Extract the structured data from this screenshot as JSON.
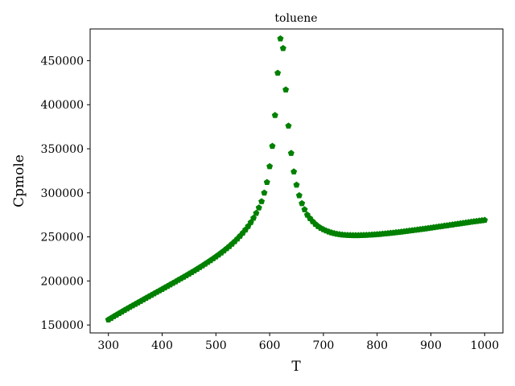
{
  "chart_data": {
    "type": "scatter",
    "title": "toluene",
    "xlabel": "T",
    "ylabel": "Cpmole",
    "xlim": [
      266,
      1034
    ],
    "ylim": [
      141000,
      486000
    ],
    "xticks": [
      300,
      400,
      500,
      600,
      700,
      800,
      900,
      1000
    ],
    "yticks": [
      150000,
      200000,
      250000,
      300000,
      350000,
      400000,
      450000
    ],
    "marker": "pentagon",
    "marker_color": "#008000",
    "grid": false,
    "series": [
      {
        "points": [
          [
            300,
            156000
          ],
          [
            305,
            157800
          ],
          [
            310,
            159700
          ],
          [
            315,
            161500
          ],
          [
            320,
            163300
          ],
          [
            325,
            165000
          ],
          [
            330,
            166800
          ],
          [
            335,
            168500
          ],
          [
            340,
            170300
          ],
          [
            345,
            172000
          ],
          [
            350,
            173700
          ],
          [
            355,
            175400
          ],
          [
            360,
            177100
          ],
          [
            365,
            178800
          ],
          [
            370,
            180500
          ],
          [
            375,
            182200
          ],
          [
            380,
            183900
          ],
          [
            385,
            185600
          ],
          [
            390,
            187300
          ],
          [
            395,
            189000
          ],
          [
            400,
            190700
          ],
          [
            405,
            192400
          ],
          [
            410,
            194100
          ],
          [
            415,
            195800
          ],
          [
            420,
            197500
          ],
          [
            425,
            199200
          ],
          [
            430,
            201000
          ],
          [
            435,
            202700
          ],
          [
            440,
            204500
          ],
          [
            445,
            206200
          ],
          [
            450,
            208000
          ],
          [
            455,
            209800
          ],
          [
            460,
            211600
          ],
          [
            465,
            213500
          ],
          [
            470,
            215400
          ],
          [
            475,
            217300
          ],
          [
            480,
            219300
          ],
          [
            485,
            221300
          ],
          [
            490,
            223300
          ],
          [
            495,
            225400
          ],
          [
            500,
            227500
          ],
          [
            505,
            229700
          ],
          [
            510,
            232000
          ],
          [
            515,
            234300
          ],
          [
            520,
            236800
          ],
          [
            525,
            239300
          ],
          [
            530,
            242000
          ],
          [
            535,
            244800
          ],
          [
            540,
            247800
          ],
          [
            545,
            251000
          ],
          [
            550,
            254400
          ],
          [
            555,
            258100
          ],
          [
            560,
            262100
          ],
          [
            565,
            266500
          ],
          [
            570,
            271400
          ],
          [
            575,
            276900
          ],
          [
            580,
            283100
          ],
          [
            585,
            290200
          ],
          [
            590,
            300000
          ],
          [
            595,
            312000
          ],
          [
            600,
            330000
          ],
          [
            605,
            353000
          ],
          [
            610,
            388000
          ],
          [
            615,
            436000
          ],
          [
            620,
            475000
          ],
          [
            625,
            464000
          ],
          [
            630,
            417000
          ],
          [
            635,
            376000
          ],
          [
            640,
            345000
          ],
          [
            645,
            324000
          ],
          [
            650,
            309000
          ],
          [
            655,
            297000
          ],
          [
            660,
            288000
          ],
          [
            665,
            281000
          ],
          [
            670,
            275000
          ],
          [
            675,
            271000
          ],
          [
            680,
            267500
          ],
          [
            685,
            264500
          ],
          [
            690,
            262000
          ],
          [
            695,
            260000
          ],
          [
            700,
            258400
          ],
          [
            705,
            257000
          ],
          [
            710,
            255800
          ],
          [
            715,
            254800
          ],
          [
            720,
            254000
          ],
          [
            725,
            253300
          ],
          [
            730,
            252800
          ],
          [
            735,
            252400
          ],
          [
            740,
            252100
          ],
          [
            745,
            251900
          ],
          [
            750,
            251800
          ],
          [
            755,
            251700
          ],
          [
            760,
            251700
          ],
          [
            765,
            251700
          ],
          [
            770,
            251800
          ],
          [
            775,
            251900
          ],
          [
            780,
            252000
          ],
          [
            785,
            252200
          ],
          [
            790,
            252400
          ],
          [
            795,
            252600
          ],
          [
            800,
            252800
          ],
          [
            805,
            253100
          ],
          [
            810,
            253400
          ],
          [
            815,
            253700
          ],
          [
            820,
            254000
          ],
          [
            825,
            254300
          ],
          [
            830,
            254600
          ],
          [
            835,
            255000
          ],
          [
            840,
            255300
          ],
          [
            845,
            255700
          ],
          [
            850,
            256100
          ],
          [
            855,
            256500
          ],
          [
            860,
            256900
          ],
          [
            865,
            257300
          ],
          [
            870,
            257700
          ],
          [
            875,
            258100
          ],
          [
            880,
            258500
          ],
          [
            885,
            258900
          ],
          [
            890,
            259300
          ],
          [
            895,
            259800
          ],
          [
            900,
            260200
          ],
          [
            905,
            260700
          ],
          [
            910,
            261100
          ],
          [
            915,
            261600
          ],
          [
            920,
            262000
          ],
          [
            925,
            262500
          ],
          [
            930,
            262900
          ],
          [
            935,
            263400
          ],
          [
            940,
            263800
          ],
          [
            945,
            264300
          ],
          [
            950,
            264700
          ],
          [
            955,
            265200
          ],
          [
            960,
            265600
          ],
          [
            965,
            266100
          ],
          [
            970,
            266500
          ],
          [
            975,
            267000
          ],
          [
            980,
            267400
          ],
          [
            985,
            267800
          ],
          [
            990,
            268200
          ],
          [
            995,
            268600
          ],
          [
            1000,
            269000
          ]
        ]
      }
    ]
  }
}
